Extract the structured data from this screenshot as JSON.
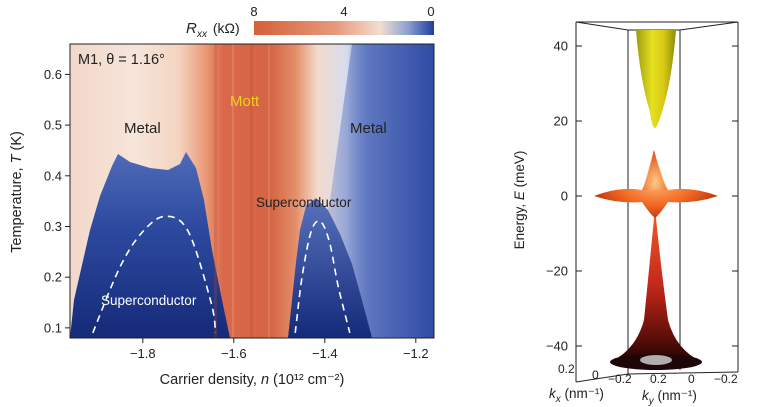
{
  "left_panel": {
    "sample_label": "M1, θ = 1.16°",
    "colorbar": {
      "label_symbol": "R",
      "label_sub": "xx",
      "label_unit": " (kΩ)",
      "tick_labels": [
        "8",
        "4",
        "0"
      ],
      "colors": [
        "#d4603a",
        "#f3ddd0",
        "#1f3d9a"
      ]
    },
    "regions": {
      "metal_left": "Metal",
      "mott": "Mott",
      "metal_right": "Metal",
      "superconductor_upper": "Superconductor",
      "superconductor_lower": "Superconductor"
    },
    "mott_color": "#f3d01c",
    "x_axis": {
      "label_prefix": "Carrier density, ",
      "label_var": "n",
      "label_unit": " (10¹² cm⁻²)",
      "tick_labels": [
        "−1.8",
        "−1.6",
        "−1.4",
        "−1.2"
      ]
    },
    "y_axis": {
      "label_prefix": "Temperature, ",
      "label_var": "T",
      "label_unit": " (K)",
      "tick_labels": [
        "0.1",
        "0.2",
        "0.3",
        "0.4",
        "0.5",
        "0.6"
      ]
    }
  },
  "right_panel": {
    "z_axis": {
      "label_prefix": "Energy, ",
      "label_var": "E",
      "label_unit": " (meV)",
      "tick_labels": [
        "40",
        "20",
        "0",
        "−20",
        "−40"
      ]
    },
    "kx_axis": {
      "label_var": "k",
      "label_sub": "x",
      "label_unit": " (nm⁻¹)",
      "tick_labels": [
        "0.2",
        "0",
        "−0.2"
      ]
    },
    "ky_axis": {
      "label_var": "k",
      "label_sub": "y",
      "label_unit": " (nm⁻¹)",
      "tick_labels": [
        "0.2",
        "0",
        "−0.2"
      ]
    }
  },
  "chart_data": [
    {
      "type": "heatmap",
      "title": "M1, θ = 1.16°",
      "xlabel": "Carrier density, n (10¹² cm⁻²)",
      "ylabel": "Temperature, T (K)",
      "colorbar_label": "Rxx (kΩ)",
      "colorbar_range": [
        8,
        0
      ],
      "xlim": [
        -1.96,
        -1.16
      ],
      "ylim": [
        0.08,
        0.66
      ],
      "x_ticks": [
        -1.8,
        -1.6,
        -1.4,
        -1.2
      ],
      "y_ticks": [
        0.1,
        0.2,
        0.3,
        0.4,
        0.5,
        0.6
      ],
      "regions": [
        "Metal",
        "Mott",
        "Metal",
        "Superconductor",
        "Superconductor"
      ],
      "superconducting_domes": [
        {
          "x": [
            -1.91,
            -1.85,
            -1.8,
            -1.75,
            -1.7,
            -1.65,
            -1.64
          ],
          "y": [
            0.09,
            0.22,
            0.29,
            0.32,
            0.29,
            0.15,
            0.09
          ]
        },
        {
          "x": [
            -1.465,
            -1.45,
            -1.43,
            -1.41,
            -1.39,
            -1.37,
            -1.345
          ],
          "y": [
            0.09,
            0.2,
            0.29,
            0.31,
            0.27,
            0.18,
            0.09
          ]
        }
      ]
    },
    {
      "type": "area",
      "zlabel": "Energy, E (meV)",
      "xlabel": "kx (nm⁻¹)",
      "ylabel": "ky (nm⁻¹)",
      "zlim": [
        -45,
        45
      ],
      "z_ticks": [
        40,
        20,
        0,
        -20,
        -40
      ],
      "kx_ticks": [
        0.2,
        0,
        -0.2
      ],
      "ky_ticks": [
        0.2,
        0,
        -0.2
      ]
    }
  ]
}
